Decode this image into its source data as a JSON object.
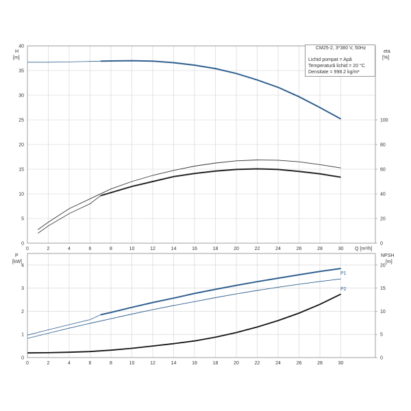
{
  "legend": {
    "title": "CM25-2, 3*380 V, 50Hz",
    "lines": [
      "Lichid pompat = Apă",
      "Temperatură lichid = 20 °C",
      "Densitate = 998.2 kg/m³"
    ]
  },
  "chart_data": [
    {
      "type": "line",
      "title": "",
      "xlabel": "Q [m³/h]",
      "xlim": [
        0,
        32
      ],
      "xticks": [
        0,
        2,
        4,
        6,
        8,
        10,
        12,
        14,
        16,
        18,
        20,
        22,
        24,
        26,
        28,
        30
      ],
      "ylabel_left": [
        "H",
        "[m]"
      ],
      "ylim_left": [
        0,
        40
      ],
      "yticks_left": [
        0,
        5,
        10,
        15,
        20,
        25,
        30,
        35,
        40
      ],
      "ylabel_right": [
        "eta",
        "[%]"
      ],
      "ylim_right": [
        0,
        160
      ],
      "yticks_right": [
        0,
        20,
        40,
        60,
        80,
        100
      ],
      "grid": true,
      "series": [
        {
          "axis": "left",
          "color": "#2f5f8f",
          "style": "bold-thin",
          "bold_from": 7,
          "x": [
            0,
            2,
            4,
            6,
            7,
            8,
            10,
            12,
            14,
            16,
            18,
            20,
            22,
            24,
            26,
            28,
            30
          ],
          "y": [
            36.7,
            36.7,
            36.75,
            36.85,
            36.9,
            36.95,
            37.0,
            36.9,
            36.6,
            36.1,
            35.4,
            34.4,
            33.1,
            31.6,
            29.7,
            27.5,
            25.2
          ]
        },
        {
          "axis": "right",
          "color": "#222222",
          "style": "bold-thin",
          "bold_from": 7,
          "x": [
            1,
            2,
            4,
            6,
            7,
            8,
            10,
            12,
            14,
            16,
            18,
            20,
            22,
            24,
            26,
            28,
            30
          ],
          "y": [
            8,
            14,
            24,
            32,
            38.5,
            41,
            46,
            50,
            54,
            56.5,
            58.5,
            59.8,
            60.3,
            59.8,
            58.2,
            56.2,
            53.5
          ]
        },
        {
          "axis": "right",
          "color": "#333333",
          "style": "thin",
          "x": [
            1,
            2,
            4,
            6,
            8,
            10,
            12,
            14,
            16,
            18,
            20,
            22,
            24,
            26,
            28,
            30
          ],
          "y": [
            11,
            17,
            28,
            36,
            44,
            50,
            55,
            59,
            62.5,
            65,
            66.8,
            67.5,
            67.3,
            66,
            63.7,
            61
          ]
        }
      ]
    },
    {
      "type": "line",
      "title": "",
      "xlabel": "",
      "xlim": [
        0,
        32
      ],
      "xticks": [
        0,
        2,
        4,
        6,
        8,
        10,
        12,
        14,
        16,
        18,
        20,
        22,
        24,
        26,
        28,
        30
      ],
      "ylabel_left": [
        "P",
        "[kW]"
      ],
      "ylim_left": [
        0,
        4.5
      ],
      "yticks_left": [
        0,
        1,
        2,
        3,
        4
      ],
      "ylabel_right": [
        "NPSH",
        "[m]"
      ],
      "ylim_right": [
        0,
        22.5
      ],
      "yticks_right": [
        0,
        5,
        10,
        15,
        20
      ],
      "grid": true,
      "series": [
        {
          "name": "P1",
          "axis": "left",
          "color": "#2f5f8f",
          "style": "bold-thin",
          "bold_from": 7,
          "x": [
            0,
            2,
            4,
            6,
            7,
            8,
            10,
            12,
            14,
            16,
            18,
            20,
            22,
            24,
            26,
            28,
            30
          ],
          "y": [
            0.97,
            1.2,
            1.42,
            1.64,
            1.85,
            1.95,
            2.17,
            2.38,
            2.57,
            2.77,
            2.95,
            3.12,
            3.28,
            3.43,
            3.58,
            3.72,
            3.85
          ]
        },
        {
          "name": "P2",
          "axis": "left",
          "color": "#2f5f8f",
          "style": "thin",
          "x": [
            0,
            2,
            4,
            6,
            8,
            10,
            12,
            14,
            16,
            18,
            20,
            22,
            24,
            26,
            28,
            30
          ],
          "y": [
            0.83,
            1.05,
            1.27,
            1.48,
            1.68,
            1.88,
            2.07,
            2.25,
            2.42,
            2.59,
            2.75,
            2.9,
            3.04,
            3.17,
            3.29,
            3.4
          ]
        },
        {
          "axis": "right",
          "color": "#111111",
          "style": "bold",
          "x": [
            0,
            2,
            4,
            6,
            8,
            10,
            12,
            14,
            16,
            18,
            20,
            22,
            24,
            26,
            28,
            30
          ],
          "y": [
            1.0,
            1.05,
            1.15,
            1.3,
            1.6,
            2.0,
            2.5,
            3.0,
            3.6,
            4.4,
            5.4,
            6.6,
            8.0,
            9.6,
            11.5,
            13.7
          ]
        }
      ]
    }
  ]
}
